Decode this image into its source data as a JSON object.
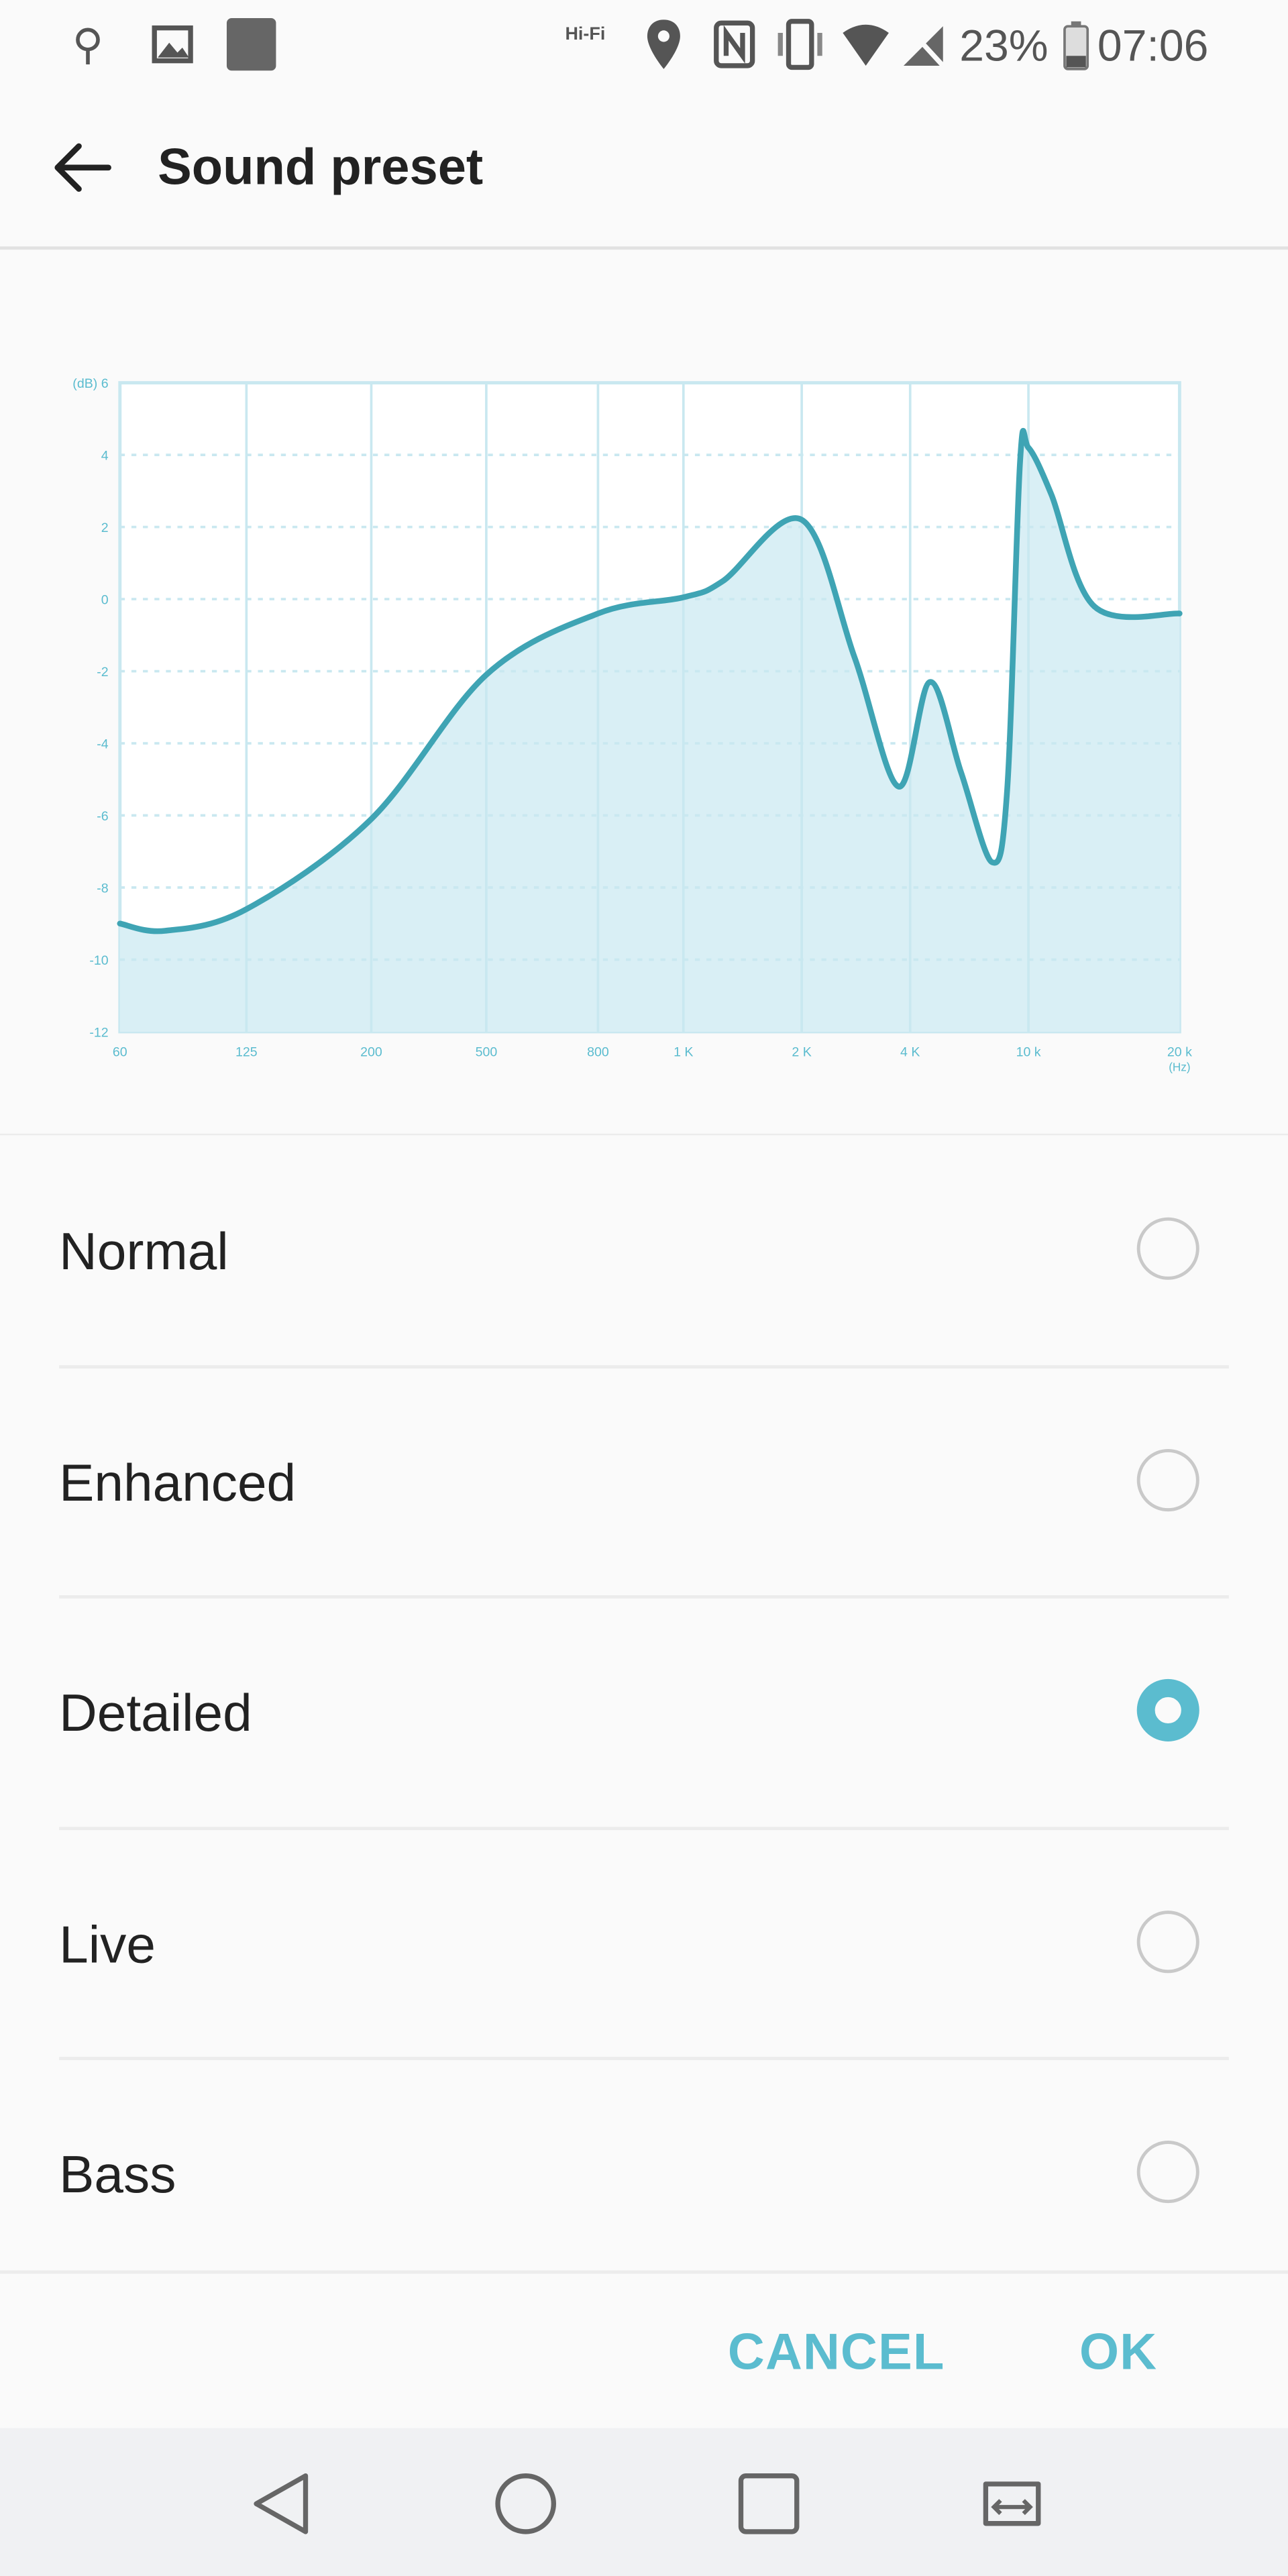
{
  "status_bar": {
    "left_icons": [
      "usb-icon",
      "image-icon",
      "square-notification-icon"
    ],
    "right_icons": [
      "hifi-icon",
      "location-icon",
      "nfc-icon",
      "vibrate-icon",
      "wifi-icon",
      "no-signal-icon"
    ],
    "hifi_label": "Hi-Fi",
    "battery": "23%",
    "time": "07:06"
  },
  "header": {
    "title": "Sound preset",
    "back_icon": "arrow-left-icon"
  },
  "chart_data": {
    "type": "area",
    "title": "",
    "y_unit": "(dB)",
    "x_unit": "(Hz)",
    "ylim": [
      -12,
      6
    ],
    "y_ticks": [
      6,
      4,
      2,
      0,
      -2,
      -4,
      -6,
      -8,
      -10,
      -12
    ],
    "x_ticks": [
      {
        "value": 60,
        "label": "60"
      },
      {
        "value": 125,
        "label": "125"
      },
      {
        "value": 200,
        "label": "200"
      },
      {
        "value": 500,
        "label": "500"
      },
      {
        "value": 800,
        "label": "800"
      },
      {
        "value": 1000,
        "label": "1 K"
      },
      {
        "value": 2000,
        "label": "2 K"
      },
      {
        "value": 4000,
        "label": "4 K"
      },
      {
        "value": 10000,
        "label": "10 k"
      },
      {
        "value": 20000,
        "label": "20 k"
      }
    ],
    "grid": true,
    "points": [
      [
        60,
        -9.0
      ],
      [
        78,
        -9.2
      ],
      [
        125,
        -8.6
      ],
      [
        200,
        -6.1
      ],
      [
        500,
        -2.1
      ],
      [
        800,
        -0.4
      ],
      [
        1000,
        0.05
      ],
      [
        1260,
        0.5
      ],
      [
        2000,
        2.2
      ],
      [
        2800,
        -1.6
      ],
      [
        3716,
        -5.2
      ],
      [
        4660,
        -2.3
      ],
      [
        5930,
        -4.8
      ],
      [
        7550,
        -7.3
      ],
      [
        8480,
        -5.3
      ],
      [
        9370,
        3.8
      ],
      [
        10000,
        4.2
      ],
      [
        11110,
        2.9
      ],
      [
        13520,
        -0.2
      ],
      [
        20000,
        -0.4
      ]
    ],
    "colors": {
      "line": "#3fa4b4",
      "fill": "#d9eff5",
      "grid": "#c9e8f0",
      "labels": "#5bbccf"
    }
  },
  "presets": [
    {
      "label": "Normal",
      "selected": false
    },
    {
      "label": "Enhanced",
      "selected": false
    },
    {
      "label": "Detailed",
      "selected": true
    },
    {
      "label": "Live",
      "selected": false
    },
    {
      "label": "Bass",
      "selected": false
    }
  ],
  "buttons": {
    "cancel": "CANCEL",
    "ok": "OK"
  },
  "accent": "#5bbccf",
  "nav": [
    "back-triangle-icon",
    "home-circle-icon",
    "recents-square-icon",
    "dual-window-icon"
  ]
}
